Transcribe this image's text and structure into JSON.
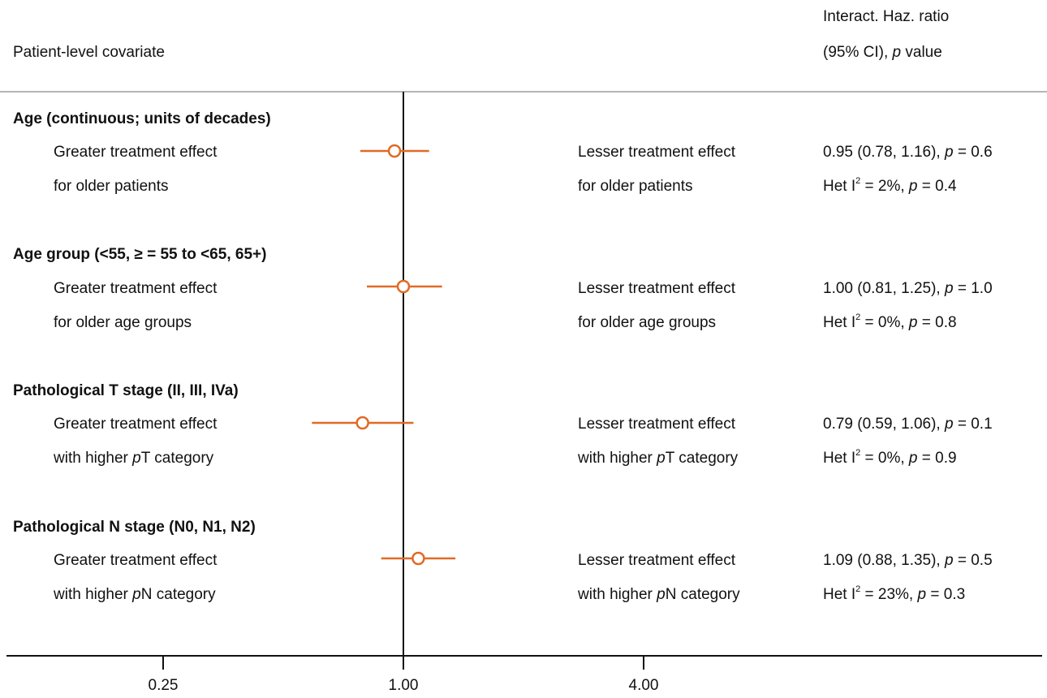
{
  "header": {
    "covariate_label": "Patient-level covariate",
    "col_line1": "Interact. Haz.  ratio",
    "col_line2_pre": "(95% CI), ",
    "col_line2_p": "p",
    "col_line2_post": " value"
  },
  "rows": [
    {
      "title": "Age (continuous; units of decades)",
      "left1": "Greater treatment effect",
      "left2_pre": "for older patients",
      "left2_p": "",
      "left2_post": "",
      "right1": "Lesser treatment effect",
      "right2_pre": "for older patients",
      "right2_p": "",
      "right2_post": "",
      "stat_pre": "0.95 (0.78, 1.16), ",
      "stat_p": "p",
      "stat_post": " = 0.6",
      "het_pre": "Het  I",
      "het_sup": "2",
      "het_mid": " = 2%, ",
      "het_p": "p",
      "het_post": " = 0.4"
    },
    {
      "title": "Age group (<55, ≥ = 55 to <65, 65+)",
      "left1": "Greater treatment effect",
      "left2_pre": "for older age groups",
      "left2_p": "",
      "left2_post": "",
      "right1": "Lesser treatment effect",
      "right2_pre": "for older age groups",
      "right2_p": "",
      "right2_post": "",
      "stat_pre": "1.00 (0.81, 1.25), ",
      "stat_p": "p",
      "stat_post": " = 1.0",
      "het_pre": "Het  I",
      "het_sup": "2",
      "het_mid": " = 0%, ",
      "het_p": "p",
      "het_post": " = 0.8"
    },
    {
      "title": "Pathological  T stage (II, III, IVa)",
      "left1": "Greater treatment effect",
      "left2_pre": "with higher ",
      "left2_p": "p",
      "left2_post": "T category",
      "right1": "Lesser treatment effect",
      "right2_pre": "with higher ",
      "right2_p": "p",
      "right2_post": "T category",
      "stat_pre": "0.79 (0.59, 1.06), ",
      "stat_p": "p",
      "stat_post": " = 0.1",
      "het_pre": "Het  I",
      "het_sup": "2",
      "het_mid": " = 0%, ",
      "het_p": "p",
      "het_post": " = 0.9"
    },
    {
      "title": "Pathological  N stage (N0, N1, N2)",
      "left1": "Greater treatment effect",
      "left2_pre": "with higher ",
      "left2_p": "p",
      "left2_post": "N category",
      "right1": "Lesser treatment effect",
      "right2_pre": "with higher ",
      "right2_p": "p",
      "right2_post": "N category",
      "stat_pre": "1.09 (0.88, 1.35), ",
      "stat_p": "p",
      "stat_post": " = 0.5",
      "het_pre": "Het  I",
      "het_sup": "2",
      "het_mid": " = 23%, ",
      "het_p": "p",
      "het_post": " = 0.3"
    }
  ],
  "chart_data": {
    "type": "forest",
    "scale": "log",
    "reference_value": 1.0,
    "x_ticks": [
      0.25,
      1.0,
      4.0
    ],
    "x_tick_labels": [
      "0.25",
      "1.00",
      "4.00"
    ],
    "marker_color": "#e06a25",
    "points": [
      {
        "label": "Age (continuous; units of decades)",
        "estimate": 0.95,
        "lower": 0.78,
        "upper": 1.16
      },
      {
        "label": "Age group (<55, ≥ = 55 to <65, 65+)",
        "estimate": 1.0,
        "lower": 0.81,
        "upper": 1.25
      },
      {
        "label": "Pathological  T stage (II, III, IVa)",
        "estimate": 0.79,
        "lower": 0.59,
        "upper": 1.06
      },
      {
        "label": "Pathological  N stage (N0, N1, N2)",
        "estimate": 1.09,
        "lower": 0.88,
        "upper": 1.35
      }
    ]
  }
}
